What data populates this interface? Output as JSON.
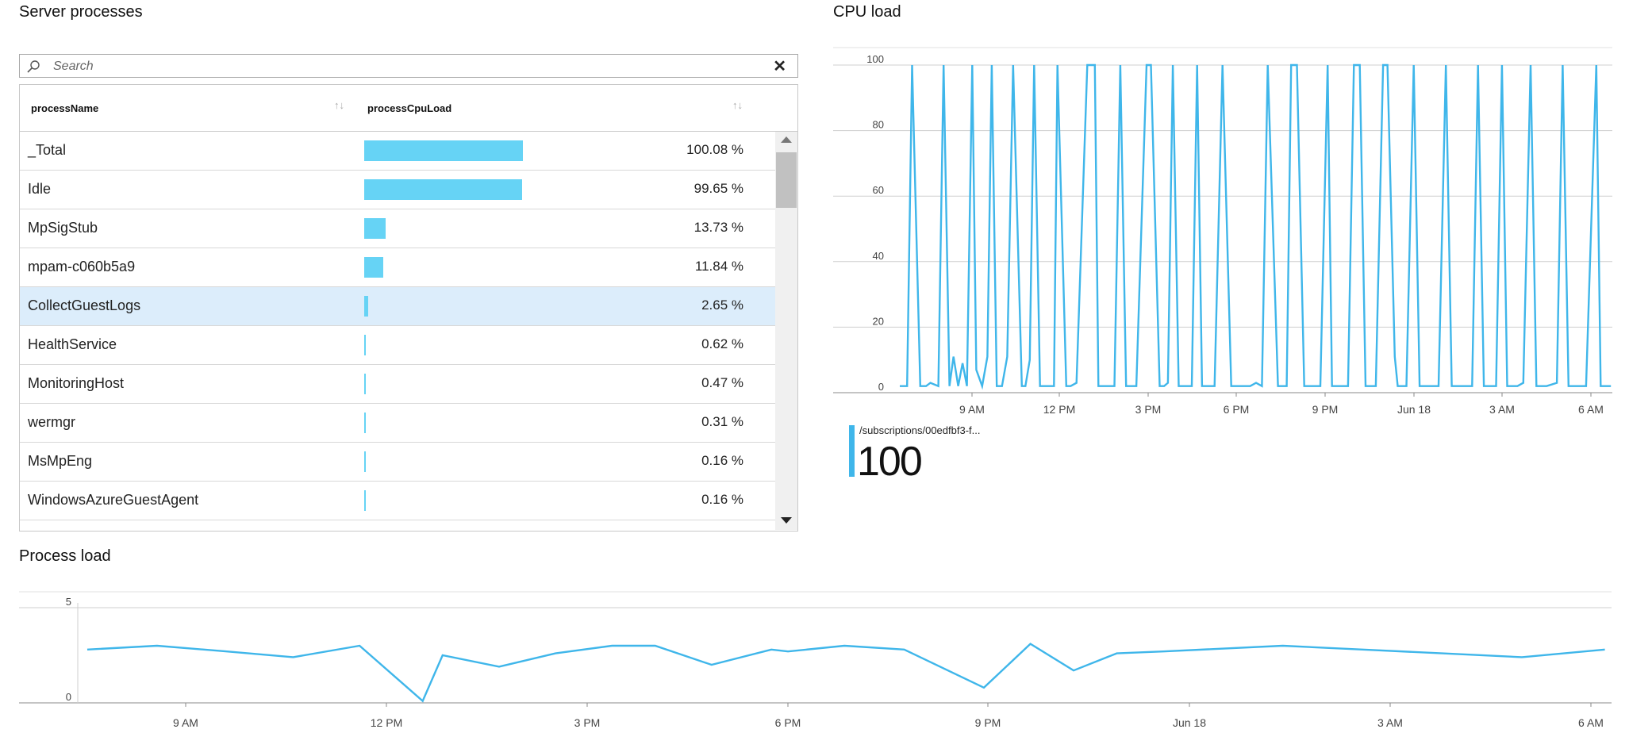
{
  "server_processes": {
    "title": "Server processes",
    "search": {
      "placeholder": "Search",
      "value": ""
    },
    "columns": {
      "name": "processName",
      "load": "processCpuLoad"
    },
    "rows": [
      {
        "name": "_Total",
        "load": 100.08,
        "label": "100.08 %"
      },
      {
        "name": "Idle",
        "load": 99.65,
        "label": "99.65 %"
      },
      {
        "name": "MpSigStub",
        "load": 13.73,
        "label": "13.73 %"
      },
      {
        "name": "mpam-c060b5a9",
        "load": 11.84,
        "label": "11.84 %"
      },
      {
        "name": "CollectGuestLogs",
        "load": 2.65,
        "label": "2.65 %",
        "selected": true
      },
      {
        "name": "HealthService",
        "load": 0.62,
        "label": "0.62 %"
      },
      {
        "name": "MonitoringHost",
        "load": 0.47,
        "label": "0.47 %"
      },
      {
        "name": "wermgr",
        "load": 0.31,
        "label": "0.31 %"
      },
      {
        "name": "MsMpEng",
        "load": 0.16,
        "label": "0.16 %"
      },
      {
        "name": "WindowsAzureGuestAgent",
        "load": 0.16,
        "label": "0.16 %"
      }
    ],
    "colors": {
      "bar": "#66d3f5",
      "selected_row": "#dcedfb"
    },
    "icons": {
      "search": "search-icon",
      "clear": "close-icon",
      "sort": "sort-icon"
    }
  },
  "cpu_load": {
    "title": "CPU load",
    "legend": {
      "label": "/subscriptions/00edfbf3-f...",
      "value": "100"
    }
  },
  "process_load": {
    "title": "Process load"
  },
  "chart_data": [
    {
      "type": "line",
      "title": "CPU load",
      "ylim": [
        0,
        100
      ],
      "y_ticks": [
        "0",
        "20",
        "40",
        "60",
        "80",
        "100"
      ],
      "x_tick_labels": [
        "9 AM",
        "12 PM",
        "3 PM",
        "6 PM",
        "9 PM",
        "Jun 18",
        "3 AM",
        "6 AM"
      ],
      "x_range": [
        0,
        24.4
      ],
      "color": "#3fb6ea",
      "grid": true,
      "series": [
        {
          "name": "/subscriptions/00edfbf3-f...",
          "x": [
            0,
            0.25,
            0.42,
            0.7,
            0.9,
            1.05,
            1.32,
            1.5,
            1.7,
            1.84,
            2.0,
            2.15,
            2.3,
            2.48,
            2.62,
            2.82,
            3.0,
            3.15,
            3.32,
            3.5,
            3.68,
            3.88,
            4.18,
            4.3,
            4.45,
            4.6,
            4.8,
            5.03,
            5.28,
            5.4,
            5.7,
            5.85,
            6.05,
            6.42,
            6.68,
            6.8,
            7.05,
            7.23,
            7.35,
            7.55,
            7.75,
            7.9,
            8.1,
            8.45,
            8.6,
            8.9,
            9.05,
            9.18,
            9.35,
            9.55,
            9.75,
            10.0,
            10.18,
            10.35,
            10.55,
            10.78,
            11.05,
            11.35,
            11.65,
            11.85,
            12.0,
            12.2,
            12.4,
            12.6,
            12.95,
            13.05,
            13.25,
            13.4,
            13.6,
            13.85,
            14.05,
            14.22,
            14.4,
            14.65,
            14.8,
            15.05,
            15.35,
            15.55,
            15.75,
            15.95,
            16.3,
            16.55,
            16.7,
            16.95,
            17.05,
            17.35,
            17.6,
            17.8,
            17.95,
            18.25,
            18.45,
            18.7,
            18.9,
            19.1,
            19.3,
            19.6,
            19.8,
            20.0,
            20.2,
            20.42,
            20.62,
            20.8,
            20.98,
            21.15,
            21.35,
            21.6,
            21.8,
            22.0,
            22.15,
            22.5,
            22.7,
            22.9,
            23.1,
            23.35,
            23.5,
            23.85,
            24.0,
            24.2,
            24.35
          ],
          "values": [
            2,
            2,
            100,
            2,
            2,
            3,
            2,
            100,
            2,
            11,
            2,
            9,
            2,
            100,
            7,
            2,
            11,
            100,
            2,
            2,
            11,
            100,
            2,
            2,
            10,
            100,
            2,
            2,
            2,
            100,
            2,
            2,
            3,
            100,
            100,
            2,
            2,
            2,
            2,
            100,
            2,
            2,
            2,
            100,
            100,
            2,
            2,
            3,
            100,
            2,
            2,
            2,
            100,
            2,
            2,
            2,
            100,
            2,
            2,
            2,
            2,
            3,
            2,
            100,
            2,
            2,
            2,
            100,
            100,
            2,
            2,
            2,
            2,
            100,
            2,
            2,
            2,
            100,
            100,
            2,
            2,
            100,
            100,
            11,
            2,
            2,
            100,
            2,
            2,
            2,
            2,
            100,
            2,
            2,
            2,
            2,
            100,
            2,
            2,
            2,
            100,
            2,
            2,
            2,
            3,
            100,
            2,
            2,
            2,
            3,
            100,
            2,
            2,
            2,
            2,
            100,
            2,
            2,
            2
          ]
        }
      ]
    },
    {
      "type": "line",
      "title": "Process load",
      "ylim": [
        0,
        5
      ],
      "y_ticks": [
        "0",
        "5"
      ],
      "x_tick_labels": [
        "9 AM",
        "12 PM",
        "3 PM",
        "6 PM",
        "9 PM",
        "Jun 18",
        "3 AM",
        "6 AM"
      ],
      "x_range": [
        0,
        22.95
      ],
      "color": "#3fb6ea",
      "grid": true,
      "series": [
        {
          "name": "",
          "x": [
            0,
            1.05,
            2.1,
            3.1,
            4.1,
            5.05,
            5.35,
            6.2,
            7.05,
            7.9,
            8.55,
            9.4,
            10.3,
            10.55,
            11.4,
            12.3,
            13.5,
            14.2,
            14.85,
            15.5,
            16.2,
            18.0,
            19.2,
            20.4,
            21.6,
            22.85
          ],
          "values": [
            2.8,
            3.0,
            2.7,
            2.4,
            3.0,
            0.1,
            2.5,
            1.9,
            2.6,
            3.0,
            3.0,
            2.0,
            2.8,
            2.7,
            3.0,
            2.8,
            0.8,
            3.1,
            1.7,
            2.6,
            2.7,
            3.0,
            2.8,
            2.6,
            2.4,
            2.8
          ]
        }
      ]
    }
  ]
}
